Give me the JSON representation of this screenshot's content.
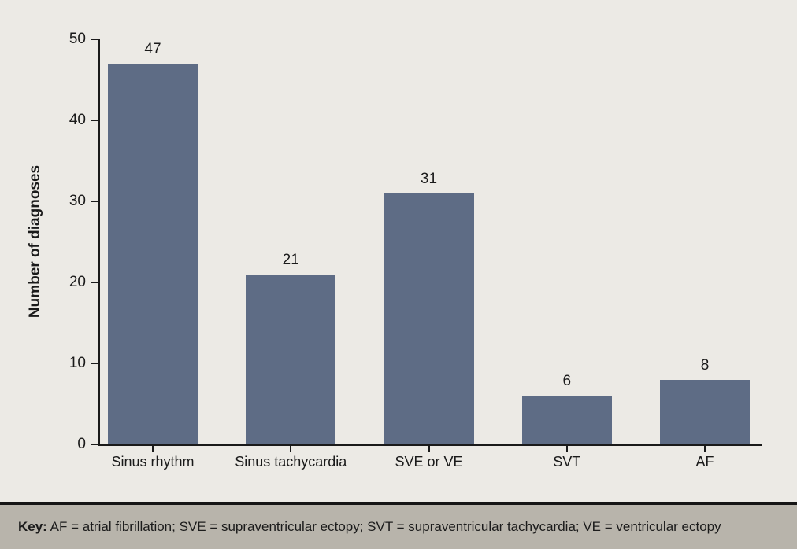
{
  "chart_data": {
    "type": "bar",
    "categories": [
      "Sinus rhythm",
      "Sinus tachycardia",
      "SVE or VE",
      "SVT",
      "AF"
    ],
    "values": [
      47,
      21,
      31,
      6,
      8
    ],
    "title": "",
    "xlabel": "",
    "ylabel": "Number of diagnoses",
    "yticks": [
      0,
      10,
      20,
      30,
      40,
      50
    ],
    "ylim": [
      0,
      50
    ],
    "grid": false,
    "legend": "none",
    "value_labels": [
      47,
      21,
      31,
      6,
      8
    ],
    "bar_color": "#5e6c85",
    "axis_color": "#1a1a1a",
    "background_color": "#eceae5"
  },
  "footer": {
    "key_label": "Key:",
    "key_text": "AF = atrial fibrillation; SVE = supraventricular ectopy; SVT = supraventricular tachycardia; VE = ventricular ectopy",
    "background_color": "#b8b4ab",
    "border_color": "#151515"
  }
}
